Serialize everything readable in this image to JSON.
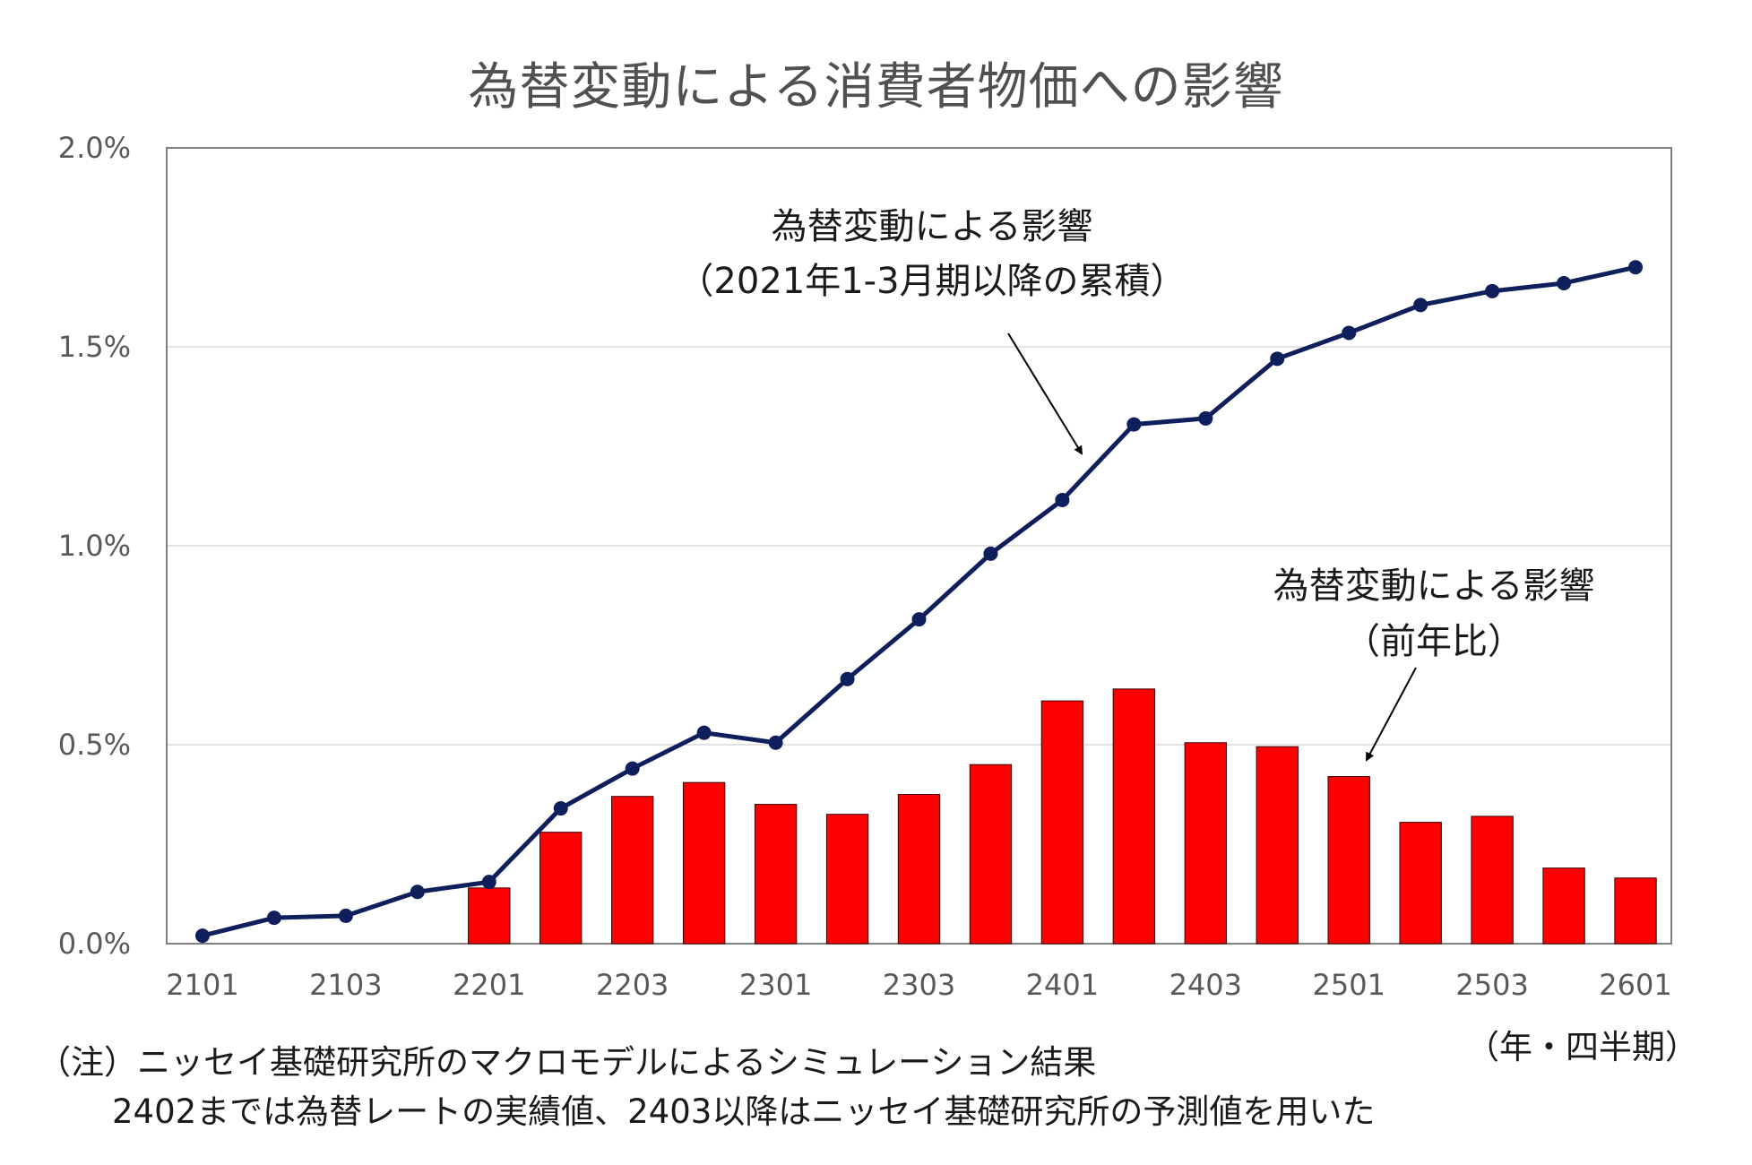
{
  "chart_data": {
    "type": "bar+line",
    "title": "為替変動による消費者物価への影響",
    "x_unit_label": "（年・四半期）",
    "categories": [
      "2101",
      "2102",
      "2103",
      "2104",
      "2201",
      "2202",
      "2203",
      "2204",
      "2301",
      "2302",
      "2303",
      "2304",
      "2401",
      "2402",
      "2403",
      "2404",
      "2501",
      "2502",
      "2503",
      "2504",
      "2601"
    ],
    "x_tick_labels": [
      "2101",
      "2103",
      "2201",
      "2203",
      "2301",
      "2303",
      "2401",
      "2403",
      "2501",
      "2503",
      "2601"
    ],
    "y_tick_labels": [
      "0.0%",
      "0.5%",
      "1.0%",
      "1.5%",
      "2.0%"
    ],
    "ylim": [
      0,
      2.0
    ],
    "y_unit": "%",
    "grid": true,
    "series": [
      {
        "type": "line",
        "color": "#0f1f5c",
        "values": [
          0.02,
          0.065,
          0.07,
          0.13,
          0.155,
          0.34,
          0.44,
          0.53,
          0.505,
          0.665,
          0.815,
          0.98,
          1.115,
          1.305,
          1.32,
          1.47,
          1.535,
          1.605,
          1.64,
          1.66,
          1.7
        ]
      },
      {
        "type": "bar",
        "color": "#ff0000",
        "values": [
          null,
          null,
          null,
          null,
          0.14,
          0.28,
          0.37,
          0.405,
          0.35,
          0.325,
          0.375,
          0.45,
          0.61,
          0.64,
          0.505,
          0.495,
          0.42,
          0.305,
          0.32,
          0.19,
          0.165
        ]
      }
    ],
    "annotations": [
      {
        "lines": [
          "為替変動による影響",
          "（2021年1-3月期以降の累積）"
        ],
        "target": "line"
      },
      {
        "lines": [
          "為替変動による影響",
          "（前年比）"
        ],
        "target": "bar"
      }
    ]
  },
  "notes": [
    "（注）ニッセイ基礎研究所のマクロモデルによるシミュレーション結果",
    "2402までは為替レートの実績値、2403以降はニッセイ基礎研究所の予測値を用いた"
  ]
}
